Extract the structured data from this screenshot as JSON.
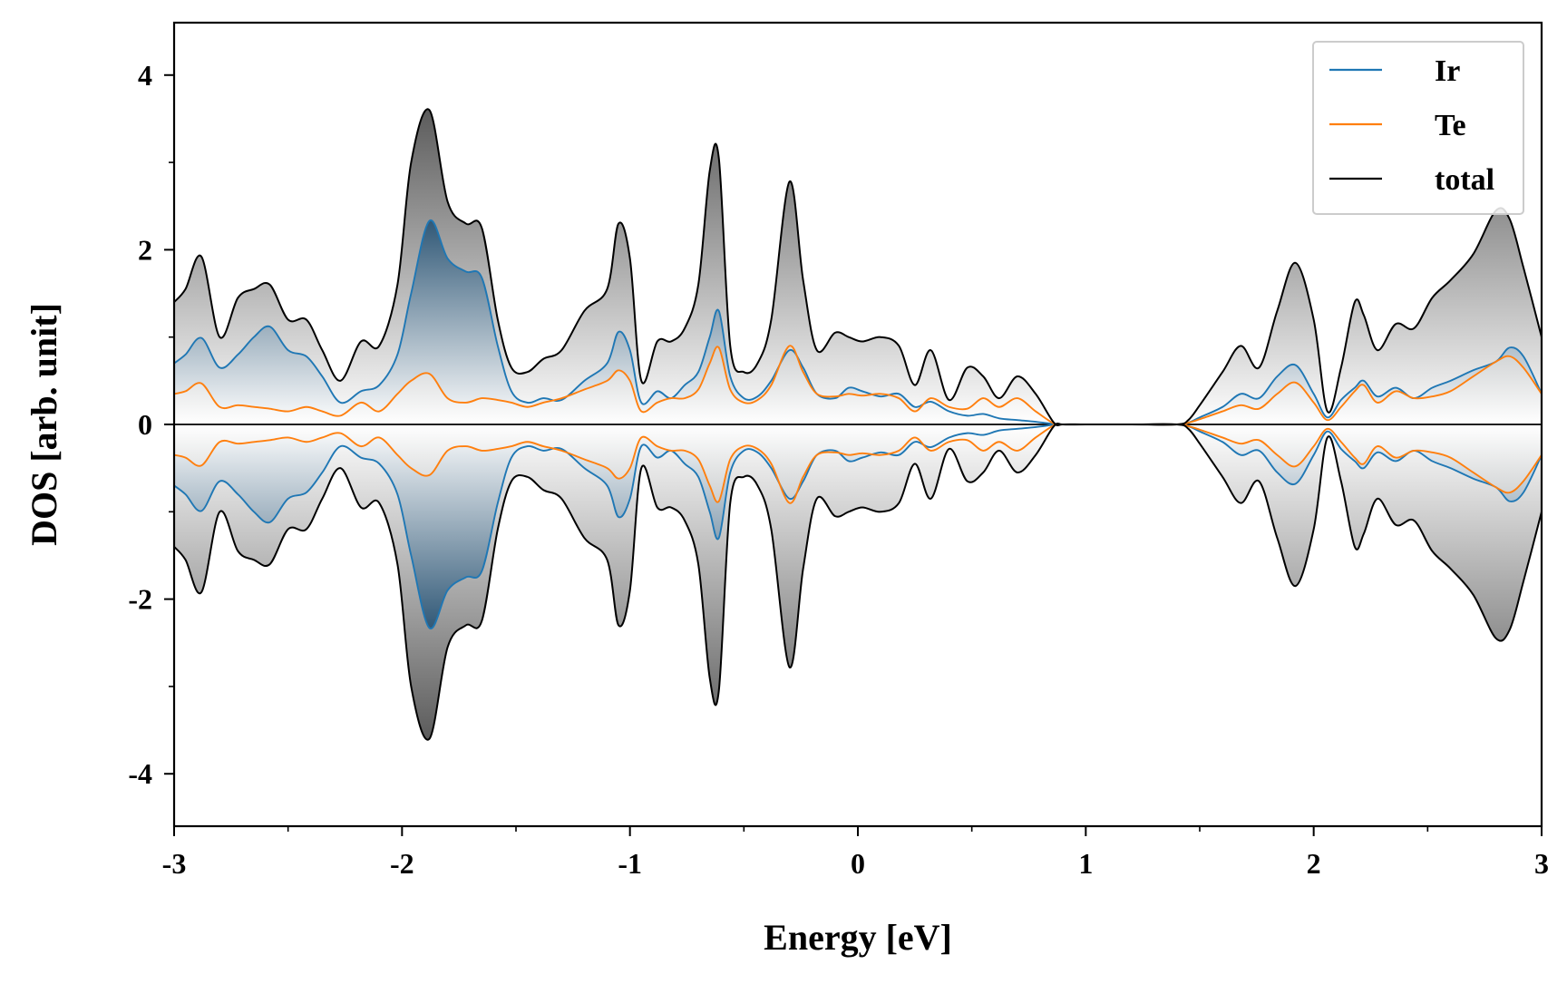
{
  "chart_data": {
    "type": "area",
    "title": "",
    "xlabel": "Energy [eV]",
    "ylabel": "DOS [arb. unit]",
    "xlim": [
      -3,
      3
    ],
    "ylim": [
      -4.6,
      4.6
    ],
    "xticks": [
      -3,
      -2,
      -1,
      0,
      1,
      2,
      3
    ],
    "xtick_labels": [
      "-3",
      "-2",
      "-1",
      "0",
      "1",
      "2",
      "3"
    ],
    "yticks": [
      -4,
      -2,
      0,
      2,
      4
    ],
    "ytick_labels": [
      "-4",
      "-2",
      "0",
      "2",
      "4"
    ],
    "legend_position": "top-right",
    "symmetric_about_zero": true,
    "series": [
      {
        "name": "Ir",
        "color": "#1f77b4",
        "fill_color": "#1f4e79",
        "x": [
          -3.0,
          -2.95,
          -2.88,
          -2.8,
          -2.72,
          -2.65,
          -2.58,
          -2.5,
          -2.42,
          -2.35,
          -2.27,
          -2.18,
          -2.1,
          -2.02,
          -1.96,
          -1.88,
          -1.8,
          -1.72,
          -1.65,
          -1.58,
          -1.52,
          -1.45,
          -1.38,
          -1.3,
          -1.2,
          -1.1,
          -1.05,
          -1.0,
          -0.95,
          -0.88,
          -0.82,
          -0.76,
          -0.7,
          -0.65,
          -0.61,
          -0.56,
          -0.5,
          -0.44,
          -0.38,
          -0.3,
          -0.24,
          -0.18,
          -0.1,
          -0.04,
          0.02,
          0.1,
          0.18,
          0.25,
          0.32,
          0.4,
          0.48,
          0.55,
          0.62,
          0.7,
          0.78,
          0.86,
          0.9,
          1.0,
          1.2,
          1.4,
          1.45,
          1.5,
          1.6,
          1.68,
          1.76,
          1.84,
          1.92,
          2.0,
          2.06,
          2.12,
          2.18,
          2.22,
          2.28,
          2.36,
          2.44,
          2.52,
          2.6,
          2.7,
          2.8,
          2.86,
          2.92,
          3.0
        ],
        "y": [
          0.7,
          0.8,
          0.99,
          0.65,
          0.8,
          1.0,
          1.12,
          0.85,
          0.78,
          0.55,
          0.25,
          0.38,
          0.45,
          0.8,
          1.5,
          2.33,
          1.9,
          1.75,
          1.68,
          0.9,
          0.38,
          0.25,
          0.3,
          0.28,
          0.5,
          0.7,
          1.06,
          0.85,
          0.25,
          0.38,
          0.3,
          0.45,
          0.6,
          1.0,
          1.3,
          0.55,
          0.3,
          0.32,
          0.5,
          0.85,
          0.65,
          0.35,
          0.3,
          0.42,
          0.38,
          0.32,
          0.35,
          0.2,
          0.26,
          0.15,
          0.1,
          0.12,
          0.07,
          0.05,
          0.03,
          0.005,
          0.0,
          0.0,
          0.0,
          0.0,
          0.02,
          0.08,
          0.2,
          0.35,
          0.3,
          0.55,
          0.68,
          0.35,
          0.08,
          0.28,
          0.42,
          0.5,
          0.32,
          0.42,
          0.3,
          0.42,
          0.5,
          0.62,
          0.72,
          0.88,
          0.78,
          0.35
        ]
      },
      {
        "name": "Te",
        "color": "#ff7f0e",
        "fill_color": "#ff7f0e",
        "x": [
          -3.0,
          -2.95,
          -2.88,
          -2.8,
          -2.72,
          -2.65,
          -2.58,
          -2.5,
          -2.42,
          -2.35,
          -2.27,
          -2.18,
          -2.1,
          -2.02,
          -1.96,
          -1.88,
          -1.8,
          -1.72,
          -1.65,
          -1.58,
          -1.52,
          -1.45,
          -1.38,
          -1.3,
          -1.2,
          -1.1,
          -1.05,
          -1.0,
          -0.95,
          -0.88,
          -0.82,
          -0.76,
          -0.7,
          -0.65,
          -0.61,
          -0.56,
          -0.5,
          -0.44,
          -0.38,
          -0.3,
          -0.24,
          -0.18,
          -0.1,
          -0.04,
          0.02,
          0.1,
          0.18,
          0.25,
          0.32,
          0.4,
          0.48,
          0.55,
          0.62,
          0.7,
          0.78,
          0.86,
          0.9,
          1.0,
          1.2,
          1.4,
          1.45,
          1.5,
          1.6,
          1.68,
          1.76,
          1.84,
          1.92,
          2.0,
          2.06,
          2.12,
          2.18,
          2.22,
          2.28,
          2.36,
          2.44,
          2.52,
          2.6,
          2.7,
          2.8,
          2.86,
          2.92,
          3.0
        ],
        "y": [
          0.35,
          0.38,
          0.47,
          0.2,
          0.22,
          0.2,
          0.18,
          0.15,
          0.2,
          0.15,
          0.1,
          0.25,
          0.15,
          0.35,
          0.5,
          0.58,
          0.3,
          0.25,
          0.3,
          0.28,
          0.25,
          0.2,
          0.25,
          0.3,
          0.4,
          0.5,
          0.62,
          0.5,
          0.15,
          0.25,
          0.3,
          0.3,
          0.4,
          0.7,
          0.88,
          0.4,
          0.25,
          0.28,
          0.45,
          0.9,
          0.6,
          0.35,
          0.32,
          0.35,
          0.33,
          0.35,
          0.3,
          0.15,
          0.3,
          0.2,
          0.18,
          0.3,
          0.2,
          0.3,
          0.15,
          0.01,
          0.0,
          0.0,
          0.0,
          0.0,
          0.02,
          0.06,
          0.15,
          0.22,
          0.18,
          0.35,
          0.48,
          0.25,
          0.05,
          0.2,
          0.38,
          0.45,
          0.25,
          0.38,
          0.3,
          0.32,
          0.38,
          0.55,
          0.72,
          0.78,
          0.65,
          0.35
        ]
      },
      {
        "name": "total",
        "color": "#000000",
        "fill_color": "#555555",
        "x": [
          -3.0,
          -2.95,
          -2.88,
          -2.8,
          -2.72,
          -2.65,
          -2.58,
          -2.5,
          -2.42,
          -2.35,
          -2.27,
          -2.18,
          -2.1,
          -2.02,
          -1.96,
          -1.88,
          -1.8,
          -1.72,
          -1.65,
          -1.58,
          -1.52,
          -1.45,
          -1.38,
          -1.3,
          -1.2,
          -1.1,
          -1.05,
          -1.0,
          -0.95,
          -0.88,
          -0.82,
          -0.76,
          -0.7,
          -0.65,
          -0.61,
          -0.56,
          -0.5,
          -0.44,
          -0.38,
          -0.3,
          -0.24,
          -0.18,
          -0.1,
          -0.04,
          0.02,
          0.1,
          0.18,
          0.25,
          0.32,
          0.4,
          0.48,
          0.55,
          0.62,
          0.7,
          0.78,
          0.86,
          0.9,
          1.0,
          1.2,
          1.4,
          1.45,
          1.5,
          1.6,
          1.68,
          1.76,
          1.84,
          1.92,
          2.0,
          2.06,
          2.12,
          2.18,
          2.22,
          2.28,
          2.36,
          2.44,
          2.52,
          2.6,
          2.7,
          2.8,
          2.86,
          2.92,
          3.0
        ],
        "y": [
          1.4,
          1.55,
          1.92,
          1.0,
          1.45,
          1.55,
          1.6,
          1.2,
          1.2,
          0.85,
          0.5,
          0.95,
          0.9,
          1.6,
          3.0,
          3.6,
          2.55,
          2.3,
          2.25,
          1.2,
          0.65,
          0.6,
          0.75,
          0.85,
          1.3,
          1.55,
          2.3,
          1.9,
          0.5,
          0.95,
          0.95,
          1.1,
          1.6,
          2.9,
          3.05,
          0.9,
          0.6,
          0.7,
          1.2,
          2.78,
          1.65,
          0.85,
          1.05,
          1.0,
          0.95,
          1.0,
          0.9,
          0.45,
          0.85,
          0.28,
          0.65,
          0.55,
          0.3,
          0.55,
          0.35,
          0.02,
          0.0,
          0.0,
          0.0,
          0.0,
          0.05,
          0.22,
          0.6,
          0.9,
          0.65,
          1.3,
          1.85,
          1.2,
          0.15,
          0.65,
          1.4,
          1.25,
          0.85,
          1.15,
          1.1,
          1.45,
          1.65,
          1.95,
          2.45,
          2.35,
          1.8,
          1.0
        ]
      }
    ]
  }
}
